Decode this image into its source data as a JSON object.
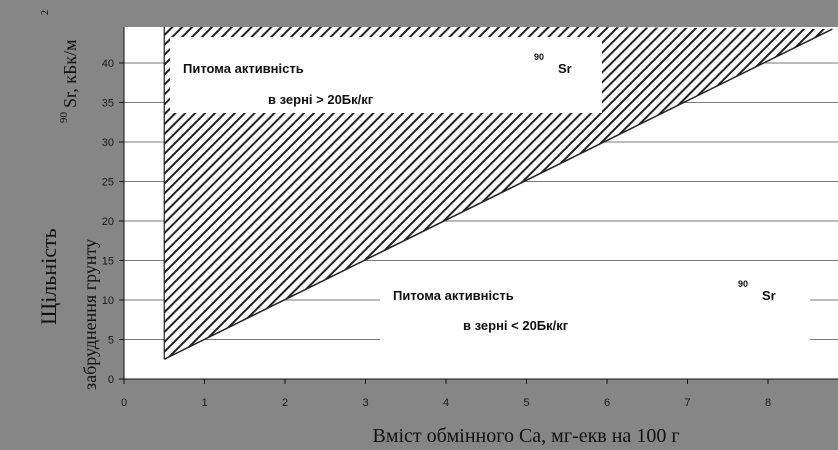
{
  "chart_data": {
    "type": "area",
    "xlabel": "Вміст обмінного  Са, мг-екв на 100 г",
    "ylabel_line1": "Щільність",
    "ylabel_line2": "забруднення грунту",
    "ylabel_sup": "90",
    "ylabel_unit": "Sr, кБк/м",
    "ylabel_exp": "2",
    "x_ticks": [
      0,
      1,
      2,
      3,
      4,
      5,
      6,
      7,
      8
    ],
    "y_ticks": [
      0,
      5,
      10,
      15,
      20,
      25,
      30,
      35,
      40
    ],
    "xlim": [
      0,
      8.8
    ],
    "ylim": [
      0,
      45
    ],
    "grid": "horizontal",
    "boundary_line": {
      "x": [
        0.5,
        8.8
      ],
      "y": [
        2.5,
        44.3
      ]
    },
    "hatched_region": {
      "x": [
        0.5,
        0.5,
        8.8
      ],
      "y": [
        2.5,
        45,
        44.3
      ]
    },
    "annotations": {
      "upper": {
        "line1": "Питома активність",
        "sup": "90",
        "iso": "Sr",
        "line2": "в зерні > 20Бк/кг"
      },
      "lower": {
        "line1": "Питома активність",
        "sup": "90",
        "iso": "Sr",
        "line2": "в зерні < 20Бк/кг"
      }
    },
    "colors": {
      "frame": "#868686",
      "plot": "#ffffff",
      "hatch": "#222222",
      "grid": "#7a7a7a"
    }
  }
}
